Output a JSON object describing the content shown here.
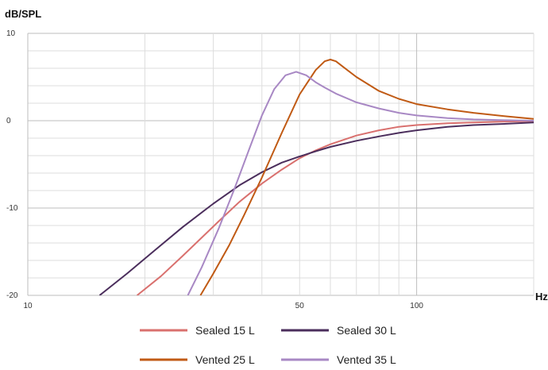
{
  "chart_data": {
    "type": "line",
    "title": "",
    "ylabel": "dB/SPL",
    "xlabel": "Hz",
    "x_scale": "log",
    "xlim": [
      10,
      200
    ],
    "ylim": [
      -20,
      10
    ],
    "x_tick_labels": [
      {
        "value": 10,
        "label": "10"
      },
      {
        "value": 50,
        "label": "50"
      },
      {
        "value": 100,
        "label": "100"
      }
    ],
    "y_tick_labels": [
      {
        "value": 10,
        "label": "10"
      },
      {
        "value": 0,
        "label": "0"
      },
      {
        "value": -10,
        "label": "-10"
      },
      {
        "value": -20,
        "label": "-20"
      }
    ],
    "grid": true,
    "legend_position": "bottom",
    "series": [
      {
        "name": "Sealed 15 L",
        "color": "#D9706E",
        "x": [
          19.1,
          22,
          25,
          28,
          31,
          35,
          40,
          45,
          50,
          55,
          60,
          70,
          80,
          90,
          100,
          120,
          140,
          170,
          200
        ],
        "y": [
          -20,
          -17.8,
          -15.5,
          -13.4,
          -11.5,
          -9.3,
          -7.2,
          -5.6,
          -4.3,
          -3.4,
          -2.7,
          -1.7,
          -1.1,
          -0.7,
          -0.5,
          -0.3,
          -0.2,
          -0.1,
          -0.05
        ]
      },
      {
        "name": "Sealed 30 L",
        "color": "#4B2E5C",
        "x": [
          15.3,
          18,
          21,
          25,
          30,
          35,
          40,
          45,
          50,
          55,
          60,
          70,
          80,
          90,
          100,
          120,
          140,
          170,
          200
        ],
        "y": [
          -20,
          -17.5,
          -15,
          -12.2,
          -9.5,
          -7.4,
          -5.9,
          -4.8,
          -4.1,
          -3.5,
          -3.0,
          -2.3,
          -1.8,
          -1.4,
          -1.1,
          -0.7,
          -0.5,
          -0.35,
          -0.2
        ]
      },
      {
        "name": "Vented 25 L",
        "color": "#C05A14",
        "x": [
          27.8,
          30,
          33,
          36,
          40,
          45,
          50,
          55,
          58,
          60,
          62,
          65,
          70,
          80,
          90,
          100,
          120,
          140,
          170,
          200
        ],
        "y": [
          -20,
          -17.5,
          -14.2,
          -10.8,
          -6.5,
          -1.4,
          3.0,
          5.8,
          6.8,
          7.0,
          6.8,
          6.1,
          5.0,
          3.4,
          2.5,
          1.9,
          1.3,
          0.9,
          0.5,
          0.2
        ]
      },
      {
        "name": "Vented 35 L",
        "color": "#A888C4",
        "x": [
          25.8,
          28,
          31,
          34,
          37,
          40,
          43,
          46,
          49,
          52,
          55,
          58,
          62,
          70,
          80,
          90,
          100,
          120,
          140,
          170,
          200
        ],
        "y": [
          -20,
          -16.8,
          -12.3,
          -7.8,
          -3.4,
          0.6,
          3.6,
          5.2,
          5.6,
          5.2,
          4.4,
          3.8,
          3.1,
          2.1,
          1.4,
          0.9,
          0.6,
          0.3,
          0.15,
          0.05,
          0
        ]
      }
    ]
  }
}
